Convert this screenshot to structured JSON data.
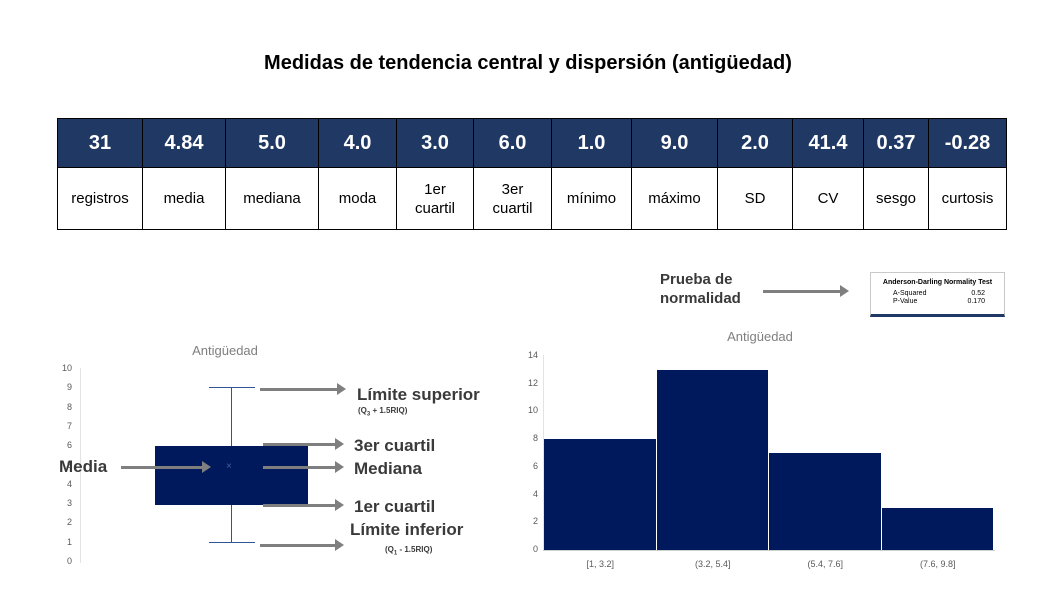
{
  "title": "Medidas de tendencia central y dispersión (antigüedad)",
  "stats": [
    {
      "value": "31",
      "label": "registros"
    },
    {
      "value": "4.84",
      "label": "media"
    },
    {
      "value": "5.0",
      "label": "mediana"
    },
    {
      "value": "4.0",
      "label": "moda"
    },
    {
      "value": "3.0",
      "label": "1er\ncuartil"
    },
    {
      "value": "6.0",
      "label": "3er\ncuartil"
    },
    {
      "value": "1.0",
      "label": "mínimo"
    },
    {
      "value": "9.0",
      "label": "máximo"
    },
    {
      "value": "2.0",
      "label": "SD"
    },
    {
      "value": "41.4",
      "label": "CV"
    },
    {
      "value": "0.37",
      "label": "sesgo"
    },
    {
      "value": "-0.28",
      "label": "curtosis"
    }
  ],
  "normality": {
    "label_line1": "Prueba de",
    "label_line2": "normalidad",
    "box_title": "Anderson-Darling Normality Test",
    "rows": [
      {
        "name": "A-Squared",
        "value": "0.52"
      },
      {
        "name": "P-Value",
        "value": "0.170"
      }
    ]
  },
  "annotations": {
    "upper_limit": "Límite superior",
    "upper_formula": "(Q3 + 1.5RIQ)",
    "q3": "3er cuartil",
    "median": "Mediana",
    "mean": "Media",
    "q1": "1er cuartil",
    "lower_limit": "Límite inferior",
    "lower_formula": "(Q1 - 1.5RIQ)"
  },
  "colors": {
    "bar": "#00195c",
    "header": "#1f3864",
    "arrow": "#7f7f7f"
  },
  "chart_data": [
    {
      "type": "boxplot",
      "title": "Antigüedad",
      "ylim": [
        0,
        10
      ],
      "yticks": [
        "0",
        "1",
        "2",
        "3",
        "4",
        "5",
        "6",
        "7",
        "8",
        "9",
        "10"
      ],
      "min": 1,
      "q1": 3,
      "median": 5,
      "mean": 4.84,
      "q3": 6,
      "max": 9
    },
    {
      "type": "bar",
      "title": "Antigüedad",
      "categories": [
        "[1, 3.2]",
        "(3.2, 5.4]",
        "(5.4, 7.6]",
        "(7.6, 9.8]"
      ],
      "values": [
        8,
        13,
        7,
        3
      ],
      "ylim": [
        0,
        14
      ],
      "yticks": [
        "0",
        "2",
        "4",
        "6",
        "8",
        "10",
        "12",
        "14"
      ]
    }
  ]
}
